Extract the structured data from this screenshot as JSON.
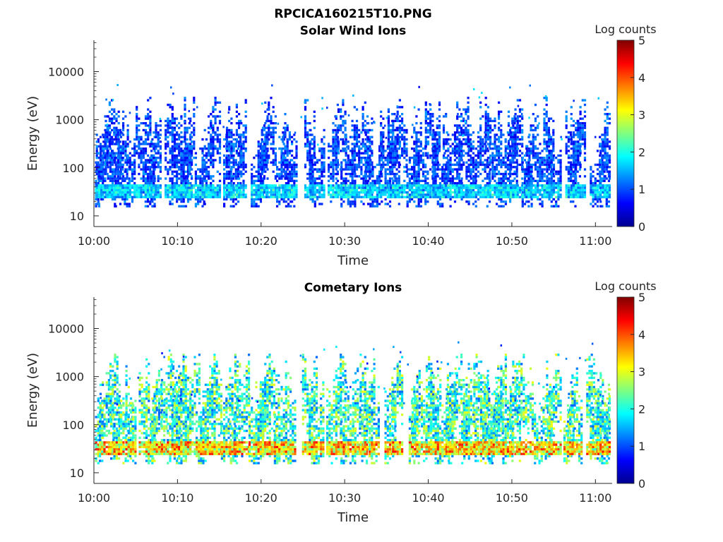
{
  "figure": {
    "title": "RPCICA160215T10.PNG"
  },
  "chart_data": [
    {
      "type": "heatmap",
      "title": "Solar Wind Ions",
      "xlabel": "Time",
      "ylabel": "Energy (eV)",
      "x_ticks": [
        "10:00",
        "10:10",
        "10:20",
        "10:30",
        "10:40",
        "10:50",
        "11:00"
      ],
      "x_range_minutes": [
        0,
        62
      ],
      "y_scale": "log",
      "y_ticks": [
        10,
        100,
        1000,
        10000
      ],
      "y_tick_labels": [
        "10",
        "100",
        "1000",
        "10000"
      ],
      "ylim": [
        6,
        45000
      ],
      "colorbar": {
        "label": "Log counts",
        "range": [
          0,
          5
        ],
        "ticks": [
          "0",
          "1",
          "2",
          "3",
          "4",
          "5"
        ],
        "colormap": "jet"
      },
      "bursts_minutes": [
        0.4,
        1.3,
        2.3,
        3.3,
        4.2,
        5.8,
        6.6,
        7.3,
        9.0,
        9.8,
        10.6,
        11.3,
        12.6,
        13.6,
        14.4,
        16.0,
        16.6,
        17.5,
        19.3,
        20.1,
        20.8,
        22.6,
        23.3,
        25.7,
        26.6,
        28.5,
        29.4,
        30.3,
        31.6,
        32.6,
        33.5,
        35.3,
        36.2,
        38.2,
        39.0,
        40.4,
        41.3,
        42.8,
        44.1,
        45.0,
        46.4,
        47.3,
        48.6,
        49.4,
        50.3,
        51.7,
        52.7,
        54.3,
        54.9,
        57.2,
        57.8,
        60.4,
        61.3
      ],
      "intensity_log_counts": {
        "typical": 1.0,
        "max": 3.2
      },
      "low_energy_band_eV": [
        22,
        45
      ]
    },
    {
      "type": "heatmap",
      "title": "Cometary Ions",
      "xlabel": "Time",
      "ylabel": "Energy (eV)",
      "x_ticks": [
        "10:00",
        "10:10",
        "10:20",
        "10:30",
        "10:40",
        "10:50",
        "11:00"
      ],
      "x_range_minutes": [
        0,
        62
      ],
      "y_scale": "log",
      "y_ticks": [
        10,
        100,
        1000,
        10000
      ],
      "y_tick_labels": [
        "10",
        "100",
        "1000",
        "10000"
      ],
      "ylim": [
        6,
        45000
      ],
      "colorbar": {
        "label": "Log counts",
        "range": [
          0,
          5
        ],
        "ticks": [
          "0",
          "1",
          "2",
          "3",
          "4",
          "5"
        ],
        "colormap": "jet"
      },
      "bursts_minutes": [
        0.4,
        1.4,
        2.4,
        3.4,
        4.3,
        5.9,
        6.7,
        7.4,
        9.1,
        9.8,
        10.6,
        11.4,
        12.7,
        13.5,
        14.3,
        16.0,
        16.7,
        17.6,
        19.3,
        20.1,
        20.9,
        22.6,
        23.4,
        25.7,
        26.5,
        28.6,
        29.4,
        30.3,
        31.7,
        32.6,
        33.4,
        35.3,
        36.2,
        38.2,
        39.1,
        40.5,
        41.3,
        42.6,
        43.3,
        44.2,
        45.0,
        46.2,
        47.0,
        47.7,
        48.6,
        49.4,
        50.3,
        51.3,
        52.9,
        54.2,
        54.9,
        56.7,
        57.4,
        59.7,
        60.4,
        61.3
      ],
      "intensity_log_counts": {
        "typical": 2.2,
        "max": 4.3
      },
      "low_energy_band_eV": [
        22,
        45
      ]
    }
  ]
}
